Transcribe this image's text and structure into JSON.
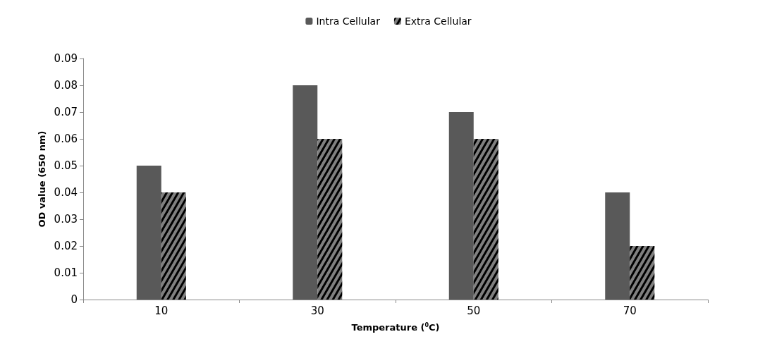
{
  "chart_data": {
    "type": "bar",
    "xlabel": "Temperature ($^{0}$C)",
    "ylabel": "OD value (650 nm)",
    "categories": [
      "10",
      "30",
      "50",
      "70"
    ],
    "series": [
      {
        "name": "Intra Cellular",
        "color": "#595959",
        "values": [
          0.05,
          0.08,
          0.07,
          0.04
        ]
      },
      {
        "name": "Extra Cellular",
        "color": "#808080",
        "values": [
          0.04,
          0.06,
          0.06,
          0.02
        ]
      }
    ],
    "ylim": [
      0,
      0.09
    ],
    "yticks": [
      0,
      0.01,
      0.02,
      0.03,
      0.04,
      0.05,
      0.06,
      0.07,
      0.08,
      0.09
    ],
    "grid": false,
    "legend": "top"
  }
}
